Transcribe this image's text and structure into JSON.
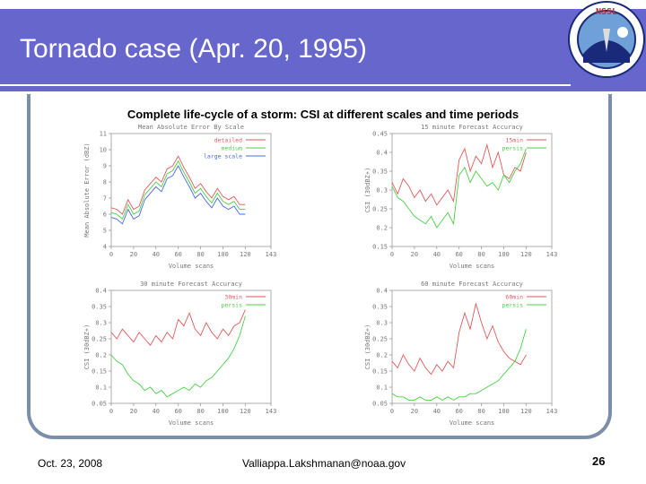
{
  "slide": {
    "title": "Tornado case (Apr. 20, 1995)",
    "figure_title": "Complete life-cycle of a storm: CSI at different scales and time periods",
    "logo_text": "NSSL",
    "logo_ring_text": "NATIONAL SEVERE STORMS LABORATORY"
  },
  "footer": {
    "date": "Oct. 23, 2008",
    "email": "Valliappa.Lakshmanan@noaa.gov",
    "page": "26"
  },
  "colors": {
    "title_bar": "#6666cc",
    "frame": "#7c8fa8",
    "red": "#e05a5a",
    "green": "#4ad04a",
    "blue": "#4a6adc"
  },
  "chart_data": [
    {
      "type": "line",
      "title": "Mean Absolute Error By Scale",
      "xlabel": "Volume scans",
      "ylabel": "Mean Absolute Error (dBZ)",
      "xlim": [
        0,
        143
      ],
      "ylim": [
        4,
        11
      ],
      "xticks": [
        0,
        20,
        40,
        60,
        80,
        100,
        120,
        143
      ],
      "yticks": [
        4,
        5,
        6,
        7,
        8,
        9,
        10,
        11
      ],
      "legend_position": "top-right",
      "series": [
        {
          "name": "detailed",
          "color": "#e05a5a",
          "x": [
            0,
            5,
            10,
            15,
            20,
            25,
            30,
            35,
            40,
            45,
            50,
            55,
            60,
            65,
            70,
            75,
            80,
            85,
            90,
            95,
            100,
            105,
            110,
            115,
            120
          ],
          "y": [
            6.4,
            6.3,
            6.0,
            6.9,
            6.3,
            6.5,
            7.5,
            7.9,
            8.3,
            8.0,
            8.8,
            9.0,
            9.6,
            8.9,
            8.3,
            7.6,
            7.9,
            7.4,
            7.0,
            7.6,
            7.1,
            6.9,
            7.1,
            6.6,
            6.6
          ]
        },
        {
          "name": "medium",
          "color": "#4ad04a",
          "x": [
            0,
            5,
            10,
            15,
            20,
            25,
            30,
            35,
            40,
            45,
            50,
            55,
            60,
            65,
            70,
            75,
            80,
            85,
            90,
            95,
            100,
            105,
            110,
            115,
            120
          ],
          "y": [
            6.1,
            6.0,
            5.7,
            6.6,
            6.0,
            6.2,
            7.2,
            7.6,
            8.0,
            7.7,
            8.5,
            8.7,
            9.3,
            8.6,
            8.0,
            7.3,
            7.6,
            7.1,
            6.7,
            7.3,
            6.8,
            6.6,
            6.8,
            6.3,
            6.3
          ]
        },
        {
          "name": "large scale",
          "color": "#4a6adc",
          "x": [
            0,
            5,
            10,
            15,
            20,
            25,
            30,
            35,
            40,
            45,
            50,
            55,
            60,
            65,
            70,
            75,
            80,
            85,
            90,
            95,
            100,
            105,
            110,
            115,
            120
          ],
          "y": [
            5.8,
            5.7,
            5.4,
            6.3,
            5.7,
            5.9,
            6.9,
            7.3,
            7.7,
            7.4,
            8.2,
            8.4,
            9.0,
            8.3,
            7.7,
            7.0,
            7.3,
            6.8,
            6.4,
            7.0,
            6.5,
            6.3,
            6.5,
            6.0,
            6.0
          ]
        }
      ]
    },
    {
      "type": "line",
      "title": "15 minute Forecast Accuracy",
      "xlabel": "Volume scans",
      "ylabel": "CSI (30dBZ+)",
      "xlim": [
        0,
        143
      ],
      "ylim": [
        0.15,
        0.45
      ],
      "xticks": [
        0,
        20,
        40,
        60,
        80,
        100,
        120,
        143
      ],
      "yticks": [
        0.15,
        0.2,
        0.25,
        0.3,
        0.35,
        0.4,
        0.45
      ],
      "legend_position": "top-right",
      "series": [
        {
          "name": "15min",
          "color": "#e05a5a",
          "x": [
            0,
            5,
            10,
            15,
            20,
            25,
            30,
            35,
            40,
            45,
            50,
            55,
            60,
            65,
            70,
            75,
            80,
            85,
            90,
            95,
            100,
            105,
            110,
            115,
            120
          ],
          "y": [
            0.32,
            0.29,
            0.33,
            0.31,
            0.28,
            0.3,
            0.27,
            0.29,
            0.26,
            0.28,
            0.3,
            0.27,
            0.38,
            0.41,
            0.35,
            0.39,
            0.37,
            0.42,
            0.36,
            0.4,
            0.34,
            0.33,
            0.36,
            0.35,
            0.4
          ]
        },
        {
          "name": "persis",
          "color": "#4ad04a",
          "x": [
            0,
            5,
            10,
            15,
            20,
            25,
            30,
            35,
            40,
            45,
            50,
            55,
            60,
            65,
            70,
            75,
            80,
            85,
            90,
            95,
            100,
            105,
            110,
            115,
            120
          ],
          "y": [
            0.31,
            0.28,
            0.27,
            0.25,
            0.23,
            0.22,
            0.21,
            0.23,
            0.2,
            0.22,
            0.24,
            0.21,
            0.34,
            0.36,
            0.32,
            0.35,
            0.33,
            0.31,
            0.32,
            0.3,
            0.34,
            0.32,
            0.35,
            0.37,
            0.41
          ]
        }
      ]
    },
    {
      "type": "line",
      "title": "30 minute Forecast Accuracy",
      "xlabel": "Volume scans",
      "ylabel": "CSI (30dBZ+)",
      "xlim": [
        0,
        143
      ],
      "ylim": [
        0.05,
        0.4
      ],
      "xticks": [
        0,
        20,
        40,
        60,
        80,
        100,
        120,
        143
      ],
      "yticks": [
        0.05,
        0.1,
        0.15,
        0.2,
        0.25,
        0.3,
        0.35,
        0.4
      ],
      "legend_position": "top-right",
      "series": [
        {
          "name": "30min",
          "color": "#e05a5a",
          "x": [
            0,
            5,
            10,
            15,
            20,
            25,
            30,
            35,
            40,
            45,
            50,
            55,
            60,
            65,
            70,
            75,
            80,
            85,
            90,
            95,
            100,
            105,
            110,
            115,
            120
          ],
          "y": [
            0.27,
            0.25,
            0.28,
            0.26,
            0.24,
            0.27,
            0.25,
            0.23,
            0.26,
            0.24,
            0.27,
            0.25,
            0.31,
            0.29,
            0.33,
            0.28,
            0.26,
            0.3,
            0.27,
            0.25,
            0.28,
            0.26,
            0.29,
            0.3,
            0.34
          ]
        },
        {
          "name": "persis",
          "color": "#4ad04a",
          "x": [
            0,
            5,
            10,
            15,
            20,
            25,
            30,
            35,
            40,
            45,
            50,
            55,
            60,
            65,
            70,
            75,
            80,
            85,
            90,
            95,
            100,
            105,
            110,
            115,
            120
          ],
          "y": [
            0.2,
            0.18,
            0.17,
            0.14,
            0.12,
            0.11,
            0.09,
            0.1,
            0.08,
            0.09,
            0.07,
            0.08,
            0.09,
            0.1,
            0.09,
            0.11,
            0.1,
            0.12,
            0.13,
            0.15,
            0.17,
            0.19,
            0.22,
            0.26,
            0.32
          ]
        }
      ]
    },
    {
      "type": "line",
      "title": "60 minute Forecast Accuracy",
      "xlabel": "Volume scans",
      "ylabel": "CSI (30dBZ+)",
      "xlim": [
        0,
        143
      ],
      "ylim": [
        0.05,
        0.4
      ],
      "xticks": [
        0,
        20,
        40,
        60,
        80,
        100,
        120,
        143
      ],
      "yticks": [
        0.05,
        0.1,
        0.15,
        0.2,
        0.25,
        0.3,
        0.35,
        0.4
      ],
      "legend_position": "top-right",
      "series": [
        {
          "name": "60min",
          "color": "#e05a5a",
          "x": [
            0,
            5,
            10,
            15,
            20,
            25,
            30,
            35,
            40,
            45,
            50,
            55,
            60,
            65,
            70,
            75,
            80,
            85,
            90,
            95,
            100,
            105,
            110,
            115,
            120
          ],
          "y": [
            0.18,
            0.16,
            0.2,
            0.17,
            0.15,
            0.19,
            0.16,
            0.14,
            0.17,
            0.15,
            0.18,
            0.16,
            0.27,
            0.33,
            0.28,
            0.36,
            0.3,
            0.25,
            0.29,
            0.24,
            0.21,
            0.19,
            0.18,
            0.17,
            0.2
          ]
        },
        {
          "name": "persis",
          "color": "#4ad04a",
          "x": [
            0,
            5,
            10,
            15,
            20,
            25,
            30,
            35,
            40,
            45,
            50,
            55,
            60,
            65,
            70,
            75,
            80,
            85,
            90,
            95,
            100,
            105,
            110,
            115,
            120
          ],
          "y": [
            0.08,
            0.07,
            0.07,
            0.06,
            0.06,
            0.07,
            0.06,
            0.06,
            0.07,
            0.06,
            0.07,
            0.06,
            0.07,
            0.07,
            0.08,
            0.08,
            0.09,
            0.1,
            0.11,
            0.12,
            0.14,
            0.16,
            0.18,
            0.22,
            0.28
          ]
        }
      ]
    }
  ]
}
